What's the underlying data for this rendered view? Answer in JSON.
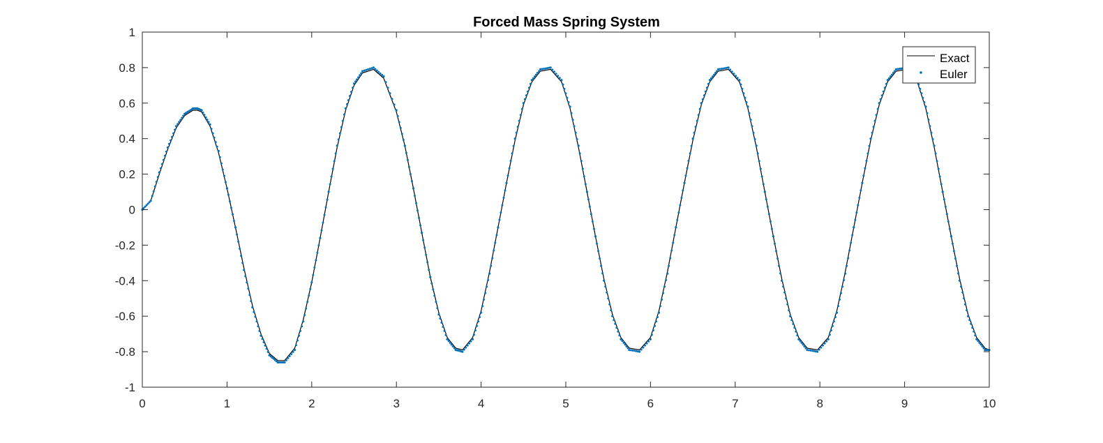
{
  "chart_data": {
    "type": "line",
    "title": "Forced Mass Spring System",
    "xlabel": "",
    "ylabel": "",
    "xlim": [
      0,
      10
    ],
    "ylim": [
      -1,
      1
    ],
    "grid": false,
    "legend_position": "top-right",
    "x_ticks": [
      0,
      1,
      2,
      3,
      4,
      5,
      6,
      7,
      8,
      9,
      10
    ],
    "y_ticks": [
      -1,
      -0.8,
      -0.6,
      -0.4,
      -0.2,
      0,
      0.2,
      0.4,
      0.6,
      0.8,
      1
    ],
    "x_tick_labels": [
      "0",
      "1",
      "2",
      "3",
      "4",
      "5",
      "6",
      "7",
      "8",
      "9",
      "10"
    ],
    "y_tick_labels": [
      "-1",
      "-0.8",
      "-0.6",
      "-0.4",
      "-0.2",
      "0",
      "0.2",
      "0.4",
      "0.6",
      "0.8",
      "1"
    ],
    "series": [
      {
        "name": "Exact",
        "style": "line",
        "color": "#000000",
        "x": [
          0,
          0.1,
          0.2,
          0.3,
          0.4,
          0.5,
          0.6,
          0.65,
          0.7,
          0.8,
          0.9,
          1.0,
          1.1,
          1.2,
          1.3,
          1.4,
          1.5,
          1.6,
          1.68,
          1.8,
          1.9,
          2.0,
          2.1,
          2.2,
          2.3,
          2.4,
          2.5,
          2.6,
          2.73,
          2.85,
          3.0,
          3.1,
          3.2,
          3.3,
          3.4,
          3.5,
          3.6,
          3.7,
          3.78,
          3.9,
          4.0,
          4.1,
          4.2,
          4.3,
          4.4,
          4.5,
          4.6,
          4.7,
          4.82,
          4.95,
          5.05,
          5.15,
          5.25,
          5.35,
          5.45,
          5.55,
          5.65,
          5.75,
          5.87,
          6.0,
          6.1,
          6.2,
          6.3,
          6.4,
          6.5,
          6.6,
          6.7,
          6.8,
          6.92,
          7.05,
          7.15,
          7.25,
          7.35,
          7.45,
          7.55,
          7.65,
          7.75,
          7.85,
          7.97,
          8.1,
          8.2,
          8.3,
          8.4,
          8.5,
          8.6,
          8.7,
          8.8,
          8.9,
          9.02,
          9.15,
          9.25,
          9.35,
          9.45,
          9.55,
          9.65,
          9.75,
          9.85,
          9.95,
          10.0
        ],
        "y": [
          0,
          0.05,
          0.2,
          0.34,
          0.46,
          0.53,
          0.56,
          0.56,
          0.55,
          0.47,
          0.32,
          0.12,
          -0.1,
          -0.33,
          -0.54,
          -0.7,
          -0.81,
          -0.85,
          -0.85,
          -0.78,
          -0.62,
          -0.41,
          -0.16,
          0.1,
          0.35,
          0.56,
          0.7,
          0.77,
          0.79,
          0.74,
          0.55,
          0.36,
          0.12,
          -0.13,
          -0.38,
          -0.58,
          -0.72,
          -0.78,
          -0.79,
          -0.72,
          -0.57,
          -0.35,
          -0.1,
          0.15,
          0.39,
          0.59,
          0.72,
          0.78,
          0.79,
          0.72,
          0.57,
          0.35,
          0.1,
          -0.15,
          -0.39,
          -0.59,
          -0.72,
          -0.78,
          -0.79,
          -0.72,
          -0.57,
          -0.35,
          -0.1,
          0.15,
          0.39,
          0.59,
          0.72,
          0.78,
          0.79,
          0.72,
          0.57,
          0.35,
          0.1,
          -0.15,
          -0.39,
          -0.59,
          -0.72,
          -0.78,
          -0.79,
          -0.72,
          -0.57,
          -0.35,
          -0.1,
          0.15,
          0.39,
          0.59,
          0.72,
          0.78,
          0.79,
          0.72,
          0.57,
          0.35,
          0.1,
          -0.15,
          -0.39,
          -0.59,
          -0.72,
          -0.78,
          -0.79
        ]
      },
      {
        "name": "Euler",
        "style": "markers",
        "color": "#0072BD",
        "x": [
          0,
          0.1,
          0.2,
          0.3,
          0.4,
          0.5,
          0.6,
          0.65,
          0.7,
          0.8,
          0.9,
          1.0,
          1.1,
          1.2,
          1.3,
          1.4,
          1.5,
          1.6,
          1.68,
          1.8,
          1.9,
          2.0,
          2.1,
          2.2,
          2.3,
          2.4,
          2.5,
          2.6,
          2.73,
          2.85,
          3.0,
          3.1,
          3.2,
          3.3,
          3.4,
          3.5,
          3.6,
          3.7,
          3.78,
          3.9,
          4.0,
          4.1,
          4.2,
          4.3,
          4.4,
          4.5,
          4.6,
          4.7,
          4.82,
          4.95,
          5.05,
          5.15,
          5.25,
          5.35,
          5.45,
          5.55,
          5.65,
          5.75,
          5.87,
          6.0,
          6.1,
          6.2,
          6.3,
          6.4,
          6.5,
          6.6,
          6.7,
          6.8,
          6.92,
          7.05,
          7.15,
          7.25,
          7.35,
          7.45,
          7.55,
          7.65,
          7.75,
          7.85,
          7.97,
          8.1,
          8.2,
          8.3,
          8.4,
          8.5,
          8.6,
          8.7,
          8.8,
          8.9,
          9.02,
          9.15,
          9.25,
          9.35,
          9.45,
          9.55,
          9.65,
          9.75,
          9.85,
          9.95,
          10.0
        ],
        "y": [
          0,
          0.05,
          0.21,
          0.35,
          0.47,
          0.54,
          0.57,
          0.57,
          0.56,
          0.48,
          0.33,
          0.12,
          -0.1,
          -0.34,
          -0.55,
          -0.71,
          -0.82,
          -0.86,
          -0.86,
          -0.79,
          -0.63,
          -0.41,
          -0.16,
          0.1,
          0.36,
          0.57,
          0.71,
          0.78,
          0.8,
          0.75,
          0.56,
          0.36,
          0.12,
          -0.13,
          -0.38,
          -0.59,
          -0.73,
          -0.79,
          -0.8,
          -0.73,
          -0.58,
          -0.36,
          -0.1,
          0.15,
          0.4,
          0.6,
          0.73,
          0.79,
          0.8,
          0.73,
          0.58,
          0.36,
          0.1,
          -0.15,
          -0.4,
          -0.6,
          -0.73,
          -0.79,
          -0.8,
          -0.73,
          -0.58,
          -0.36,
          -0.1,
          0.15,
          0.4,
          0.6,
          0.73,
          0.79,
          0.8,
          0.73,
          0.58,
          0.36,
          0.1,
          -0.15,
          -0.4,
          -0.6,
          -0.73,
          -0.79,
          -0.8,
          -0.73,
          -0.58,
          -0.36,
          -0.1,
          0.15,
          0.4,
          0.6,
          0.73,
          0.79,
          0.8,
          0.73,
          0.58,
          0.36,
          0.1,
          -0.15,
          -0.4,
          -0.6,
          -0.73,
          -0.79,
          -0.79
        ]
      }
    ]
  }
}
